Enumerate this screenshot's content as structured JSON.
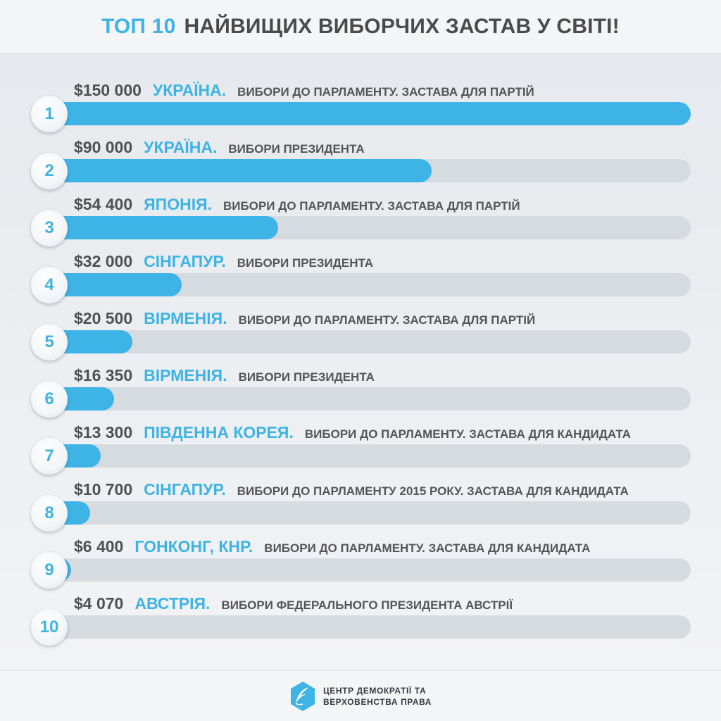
{
  "header": {
    "accent": "ТОП 10",
    "rest": "НАЙВИЩИХ ВИБОРЧИХ ЗАСТАВ У СВІТІ!"
  },
  "colors": {
    "accent": "#3db3e6",
    "track": "#d6dbe0",
    "text": "#505050"
  },
  "chart_data": {
    "type": "bar",
    "orientation": "horizontal",
    "xlim": [
      0,
      150000
    ],
    "grid": false,
    "rows": [
      {
        "rank": "1",
        "amount": "$150 000",
        "country": "УКРАЇНА.",
        "desc": "ВИБОРИ ДО ПАРЛАМЕНТУ. ЗАСТАВА ДЛЯ ПАРТІЙ",
        "value": 150000
      },
      {
        "rank": "2",
        "amount": "$90 000",
        "country": "УКРАЇНА.",
        "desc": "ВИБОРИ ПРЕЗИДЕНТА",
        "value": 90000
      },
      {
        "rank": "3",
        "amount": "$54 400",
        "country": "ЯПОНІЯ.",
        "desc": "ВИБОРИ ДО ПАРЛАМЕНТУ. ЗАСТАВА ДЛЯ ПАРТІЙ",
        "value": 54400
      },
      {
        "rank": "4",
        "amount": "$32 000",
        "country": "СІНГАПУР.",
        "desc": "ВИБОРИ ПРЕЗИДЕНТА",
        "value": 32000
      },
      {
        "rank": "5",
        "amount": "$20 500",
        "country": "ВІРМЕНІЯ.",
        "desc": "ВИБОРИ ДО ПАРЛАМЕНТУ. ЗАСТАВА ДЛЯ ПАРТІЙ",
        "value": 20500
      },
      {
        "rank": "6",
        "amount": "$16 350",
        "country": "ВІРМЕНІЯ.",
        "desc": "ВИБОРИ ПРЕЗИДЕНТА",
        "value": 16350
      },
      {
        "rank": "7",
        "amount": "$13 300",
        "country": "ПІВДЕННА КОРЕЯ.",
        "desc": "ВИБОРИ ДО ПАРЛАМЕНТУ. ЗАСТАВА ДЛЯ КАНДИДАТА",
        "value": 13300
      },
      {
        "rank": "8",
        "amount": "$10 700",
        "country": "СІНГАПУР.",
        "desc": "ВИБОРИ ДО ПАРЛАМЕНТУ 2015 РОКУ. ЗАСТАВА ДЛЯ КАНДИДАТА",
        "value": 10700
      },
      {
        "rank": "9",
        "amount": "$6 400",
        "country": "ГОНКОНГ, КНР.",
        "desc": "ВИБОРИ ДО ПАРЛАМЕНТУ. ЗАСТАВА ДЛЯ КАНДИДАТА",
        "value": 6400
      },
      {
        "rank": "10",
        "amount": "$4 070",
        "country": "АВСТРІЯ.",
        "desc": "ВИБОРИ ФЕДЕРАЛЬНОГО ПРЕЗИДЕНТА АВСТРІЇ",
        "value": 4070
      }
    ]
  },
  "footer": {
    "logo_icon": "quill-icon",
    "org_line1": "ЦЕНТР ДЕМОКРАТІЇ ТА",
    "org_line2": "ВЕРХОВЕНСТВА ПРАВА"
  }
}
